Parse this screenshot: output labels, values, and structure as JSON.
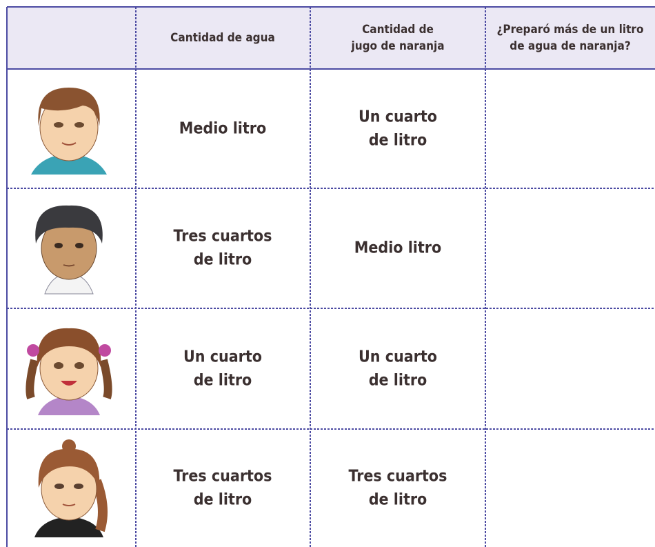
{
  "table": {
    "header": [
      [
        "Cantidad de agua"
      ],
      [
        "Cantidad de",
        "jugo de naranja"
      ],
      [
        "¿Preparó más de un litro",
        "de agua de naranja?"
      ]
    ],
    "rows": [
      [
        [
          "Medio litro"
        ],
        [
          "Un cuarto",
          "de litro"
        ]
      ],
      [
        [
          "Tres cuartos",
          "de litro"
        ],
        [
          "Medio litro"
        ]
      ],
      [
        [
          "Un cuarto",
          "de litro"
        ],
        [
          "Un cuarto",
          "de litro"
        ]
      ],
      [
        [
          "Tres cuartos",
          "de litro"
        ],
        [
          "Tres cuartos",
          "de litro"
        ]
      ]
    ]
  }
}
